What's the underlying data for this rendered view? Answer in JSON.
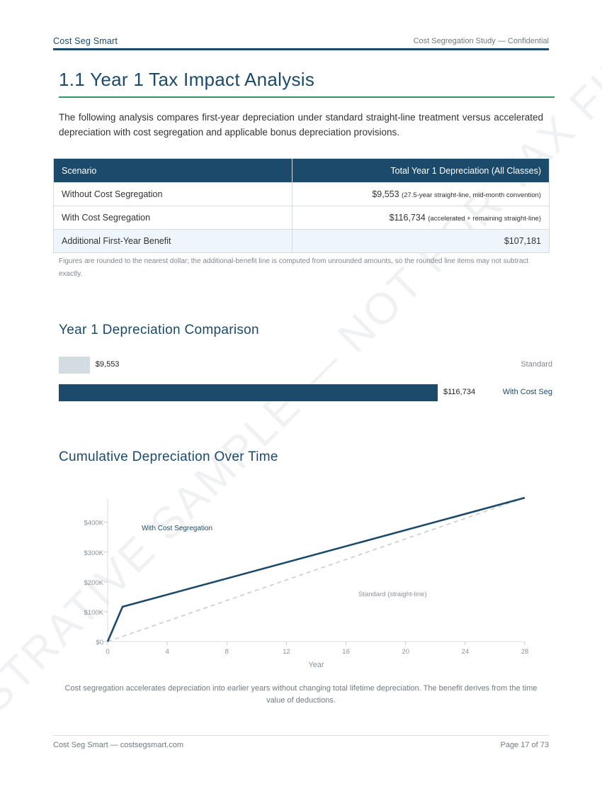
{
  "header": {
    "brand": "Cost Seg Smart",
    "confidential": "Cost Segregation Study — Confidential"
  },
  "watermark": "ILLUSTRATIVE SAMPLE — NOT FOR TAX FILING",
  "section": {
    "title": "1.1 Year 1 Tax Impact Analysis",
    "intro": "The following analysis compares first-year depreciation under standard straight-line treatment versus accelerated depreciation with cost segregation and applicable bonus depreciation provisions."
  },
  "table": {
    "headers": [
      "Scenario",
      "Total Year 1 Depreciation (All Classes)"
    ],
    "rows": [
      {
        "scenario": "Without Cost Segregation",
        "amount": "$9,553",
        "note": "(27.5-year straight-line, mid-month convention)"
      },
      {
        "scenario": "With Cost Segregation",
        "amount": "$116,734",
        "note": "(accelerated + remaining straight-line)"
      },
      {
        "scenario": "Additional First-Year Benefit",
        "amount": "$107,181",
        "note": ""
      }
    ],
    "footnote": "Figures are rounded to the nearest dollar; the additional-benefit line is computed from unrounded amounts, so the rounded line items may not subtract exactly."
  },
  "chart_data": [
    {
      "type": "bar",
      "orientation": "horizontal",
      "title": "Year 1 Depreciation Comparison",
      "categories": [
        "Standard",
        "With Cost Seg"
      ],
      "values": [
        9553,
        116734
      ],
      "value_labels": [
        "$9,553",
        "$116,734"
      ],
      "colors": [
        "#d3dce1",
        "#1b4a6b"
      ],
      "label_colors": [
        "#80888e",
        "#1b4a6b"
      ]
    },
    {
      "type": "line",
      "title": "Cumulative Depreciation Over Time",
      "xlabel": "Year",
      "ylabel": "",
      "xlim": [
        0,
        28
      ],
      "ylim": [
        0,
        480000
      ],
      "xticks": [
        0,
        4,
        8,
        12,
        16,
        20,
        24,
        28
      ],
      "yticks": [
        0,
        100000,
        200000,
        300000,
        400000
      ],
      "ytick_labels": [
        "$0",
        "$100K",
        "$200K",
        "$300K",
        "$400K"
      ],
      "grid": false,
      "series": [
        {
          "name": "With Cost Segregation",
          "color": "#1b4a6b",
          "style": "solid",
          "x": [
            0,
            1,
            28
          ],
          "y": [
            0,
            116734,
            482000
          ]
        },
        {
          "name": "Standard (straight-line)",
          "color": "#c8ccd0",
          "style": "dashed",
          "x": [
            0,
            28
          ],
          "y": [
            0,
            482000
          ]
        }
      ],
      "caption": "Cost segregation accelerates depreciation into earlier years without changing total lifetime depreciation. The benefit derives from the time value of deductions."
    }
  ],
  "footer": {
    "left": "Cost Seg Smart — costsegsmart.com",
    "right": "Page 17 of 73"
  }
}
